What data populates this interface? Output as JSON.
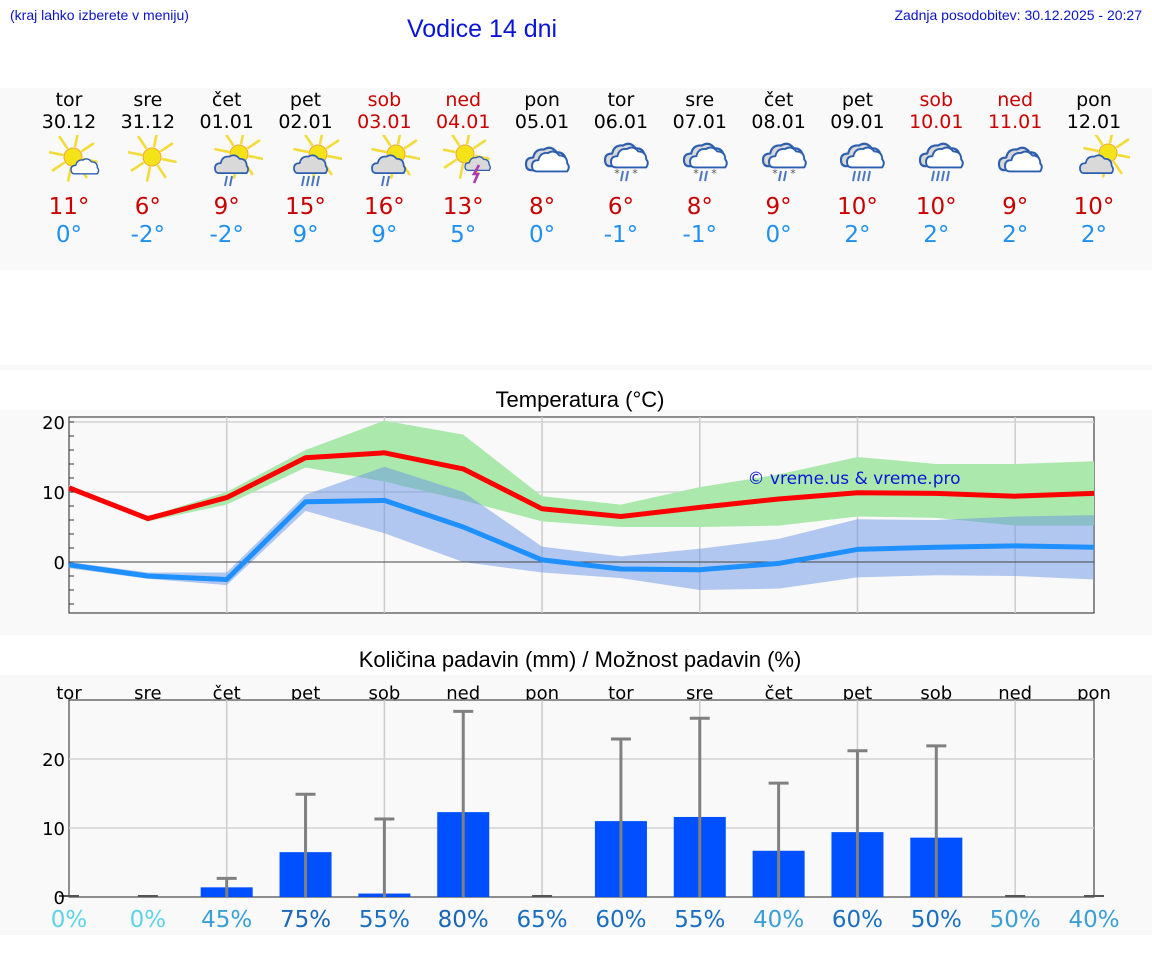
{
  "header": {
    "hint": "(kraj lahko izberete v meniju)",
    "title": "Vodice 14 dni",
    "updated": "Zadnja posodobitev: 30.12.2025 - 20:27"
  },
  "colors": {
    "header_text": "#0a14c8",
    "weekend": "#cc0000",
    "tmax": "#c80000",
    "tmin": "#2090f0",
    "max_line": "#ff0000",
    "min_line": "#1e90ff",
    "max_band": "#abe8ac",
    "min_band": "#adc8f2",
    "bar": "#0050ff",
    "error_bar": "#808080"
  },
  "days": [
    {
      "name": "tor",
      "date": "30.12",
      "weekend": false,
      "icon": "sun-small-cloud-icon",
      "tmax": "11°",
      "tmin": "0°"
    },
    {
      "name": "sre",
      "date": "31.12",
      "weekend": false,
      "icon": "sun-icon",
      "tmax": "6°",
      "tmin": "-2°"
    },
    {
      "name": "čet",
      "date": "01.01",
      "weekend": false,
      "icon": "sun-cloud-rain-light-icon",
      "tmax": "9°",
      "tmin": "-2°"
    },
    {
      "name": "pet",
      "date": "02.01",
      "weekend": false,
      "icon": "sun-cloud-rain-icon",
      "tmax": "15°",
      "tmin": "9°"
    },
    {
      "name": "sob",
      "date": "03.01",
      "weekend": true,
      "icon": "sun-cloud-rain-light-icon",
      "tmax": "16°",
      "tmin": "9°"
    },
    {
      "name": "ned",
      "date": "04.01",
      "weekend": true,
      "icon": "sun-thunder-icon",
      "tmax": "13°",
      "tmin": "5°"
    },
    {
      "name": "pon",
      "date": "05.01",
      "weekend": false,
      "icon": "cloudy-icon",
      "tmax": "8°",
      "tmin": "0°"
    },
    {
      "name": "tor",
      "date": "06.01",
      "weekend": false,
      "icon": "cloud-sleet-icon",
      "tmax": "6°",
      "tmin": "-1°"
    },
    {
      "name": "sre",
      "date": "07.01",
      "weekend": false,
      "icon": "cloud-sleet-icon",
      "tmax": "8°",
      "tmin": "-1°"
    },
    {
      "name": "čet",
      "date": "08.01",
      "weekend": false,
      "icon": "cloud-sleet-icon",
      "tmax": "9°",
      "tmin": "0°"
    },
    {
      "name": "pet",
      "date": "09.01",
      "weekend": false,
      "icon": "cloud-rain-icon",
      "tmax": "10°",
      "tmin": "2°"
    },
    {
      "name": "sob",
      "date": "10.01",
      "weekend": true,
      "icon": "cloud-rain-icon",
      "tmax": "10°",
      "tmin": "2°"
    },
    {
      "name": "ned",
      "date": "11.01",
      "weekend": true,
      "icon": "cloudy-icon",
      "tmax": "9°",
      "tmin": "2°"
    },
    {
      "name": "pon",
      "date": "12.01",
      "weekend": false,
      "icon": "sun-behind-cloud-icon",
      "tmax": "10°",
      "tmin": "2°"
    }
  ],
  "chart_data": [
    {
      "type": "line",
      "title": "Temperatura (°C)",
      "watermark": "© vreme.us & vreme.pro",
      "xlabel": "",
      "ylabel": "",
      "categories": [
        "30.12",
        "31.12",
        "01.01",
        "02.01",
        "03.01",
        "04.01",
        "05.01",
        "06.01",
        "07.01",
        "08.01",
        "09.01",
        "10.01",
        "11.01",
        "12.01"
      ],
      "ylim": [
        -7,
        21
      ],
      "yticks": [
        0,
        10,
        20
      ],
      "grid": true,
      "series": [
        {
          "name": "max",
          "values": [
            10.6,
            6.2,
            9.2,
            14.9,
            15.6,
            13.3,
            7.6,
            6.5,
            7.8,
            9.0,
            9.9,
            9.8,
            9.4,
            9.8
          ]
        },
        {
          "name": "max_band_high",
          "values": [
            11.0,
            6.5,
            10.0,
            16.0,
            20.2,
            18.2,
            9.4,
            8.2,
            10.7,
            12.5,
            15.0,
            14.0,
            14.0,
            14.4
          ]
        },
        {
          "name": "max_band_low",
          "values": [
            10.4,
            5.8,
            8.2,
            13.5,
            11.5,
            8.8,
            5.8,
            5.0,
            5.0,
            5.2,
            6.5,
            6.3,
            5.2,
            5.2
          ]
        },
        {
          "name": "min",
          "values": [
            -0.4,
            -2.0,
            -2.5,
            8.6,
            8.8,
            5.0,
            0.3,
            -1.0,
            -1.1,
            -0.2,
            1.8,
            2.1,
            2.3,
            2.1
          ]
        },
        {
          "name": "min_band_high",
          "values": [
            0.0,
            -1.5,
            -1.5,
            9.6,
            13.6,
            10.0,
            2.2,
            0.8,
            1.9,
            3.3,
            6.1,
            6.0,
            6.5,
            6.7
          ]
        },
        {
          "name": "min_band_low",
          "values": [
            -0.9,
            -2.4,
            -3.3,
            7.3,
            4.1,
            0.0,
            -1.5,
            -2.3,
            -4.0,
            -3.8,
            -2.2,
            -1.9,
            -2.0,
            -2.5
          ]
        }
      ]
    },
    {
      "type": "bar",
      "title": "Količina padavin (mm) / Možnost padavin (%)",
      "xlabel": "",
      "ylabel": "",
      "categories": [
        "tor",
        "sre",
        "čet",
        "pet",
        "sob",
        "ned",
        "pon",
        "tor",
        "sre",
        "čet",
        "pet",
        "sob",
        "ned",
        "pon"
      ],
      "ylim": [
        -0.5,
        28.5
      ],
      "yticks": [
        0,
        10,
        20
      ],
      "grid": true,
      "series": [
        {
          "name": "precip_mm",
          "values": [
            0,
            0,
            1.4,
            6.5,
            0.5,
            12.3,
            0,
            11.0,
            11.6,
            6.7,
            9.4,
            8.6,
            0,
            0
          ]
        },
        {
          "name": "precip_max_mm",
          "values": [
            0,
            0,
            2.7,
            14.9,
            11.3,
            26.9,
            0,
            22.9,
            25.9,
            16.5,
            21.2,
            21.9,
            0,
            0
          ]
        }
      ],
      "probability": [
        "0%",
        "0%",
        "45%",
        "75%",
        "55%",
        "80%",
        "65%",
        "60%",
        "55%",
        "40%",
        "60%",
        "50%",
        "50%",
        "40%"
      ],
      "probability_colors": [
        "#5fd3e8",
        "#5fd3e8",
        "#3a9fd6",
        "#1a66b8",
        "#1a6fc0",
        "#1a66b8",
        "#1a6fc0",
        "#1a6fc0",
        "#1a6fc0",
        "#3a9fd6",
        "#1a6fc0",
        "#1a6fc0",
        "#3a9fd6",
        "#3a9fd6"
      ]
    }
  ]
}
